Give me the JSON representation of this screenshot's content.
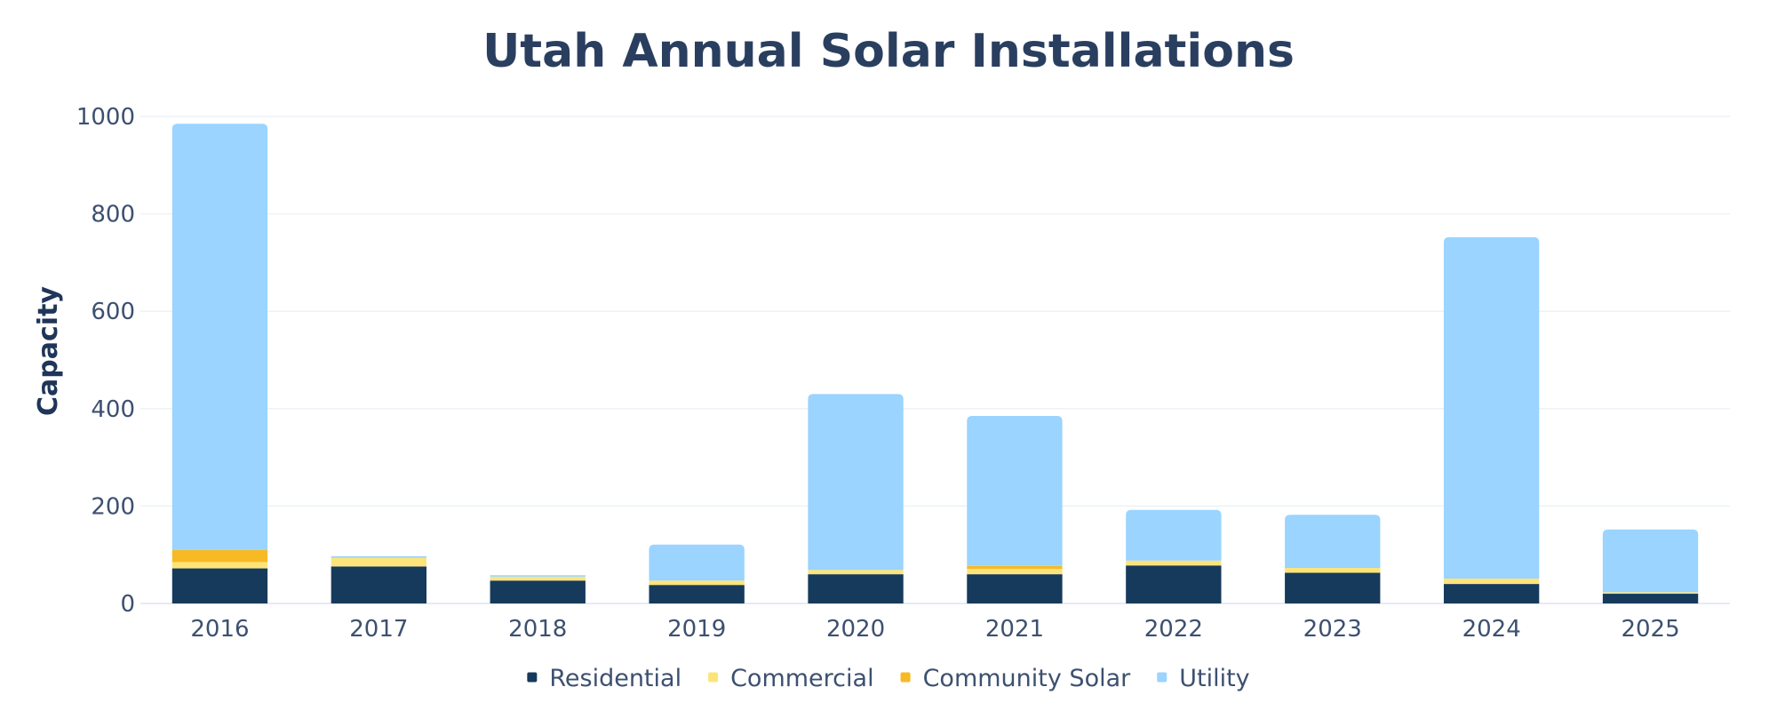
{
  "chart_data": {
    "type": "bar",
    "stacked": true,
    "title": "Utah Annual Solar Installations",
    "xlabel": "",
    "ylabel": "Capacity",
    "ylim": [
      0,
      1000
    ],
    "yticks": [
      0,
      200,
      400,
      600,
      800,
      1000
    ],
    "grid": true,
    "legend_position": "bottom-center",
    "categories": [
      "2016",
      "2017",
      "2018",
      "2019",
      "2020",
      "2021",
      "2022",
      "2023",
      "2024",
      "2025"
    ],
    "series": [
      {
        "name": "Residential",
        "color": "#163a5c",
        "values": [
          72,
          76,
          47,
          38,
          60,
          60,
          78,
          63,
          40,
          20
        ]
      },
      {
        "name": "Commercial",
        "color": "#fde47a",
        "values": [
          13,
          18,
          8,
          9,
          9,
          11,
          10,
          10,
          11,
          3
        ]
      },
      {
        "name": "Community Solar",
        "color": "#f7b924",
        "values": [
          25,
          0,
          0,
          0,
          0,
          6,
          0,
          0,
          0,
          0
        ]
      },
      {
        "name": "Utility",
        "color": "#9ad4ff",
        "values": [
          875,
          3,
          3,
          74,
          361,
          308,
          104,
          109,
          701,
          129
        ]
      }
    ]
  }
}
